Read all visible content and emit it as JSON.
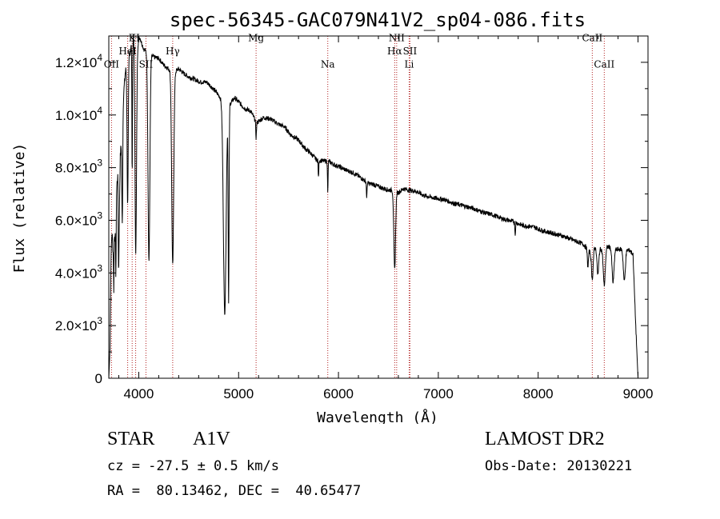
{
  "chart_data": {
    "type": "line",
    "title": "spec-56345-GAC079N41V2_sp04-086.fits",
    "xlabel": "Wavelength (Å)",
    "ylabel": "Flux (relative)",
    "xlim": [
      3700,
      9100
    ],
    "ylim": [
      0,
      13000
    ],
    "xticks": [
      4000,
      5000,
      6000,
      7000,
      8000,
      9000
    ],
    "xtick_labels": [
      "4000",
      "5000",
      "6000",
      "7000",
      "8000",
      "9000"
    ],
    "yticks": [
      0,
      2000,
      4000,
      6000,
      8000,
      10000,
      12000
    ],
    "ytick_labels": [
      {
        "mant": "0",
        "exp": ""
      },
      {
        "mant": "2.0×10",
        "exp": "3"
      },
      {
        "mant": "4.0×10",
        "exp": "3"
      },
      {
        "mant": "6.0×10",
        "exp": "3"
      },
      {
        "mant": "8.0×10",
        "exp": "3"
      },
      {
        "mant": "1.0×10",
        "exp": "4"
      },
      {
        "mant": "1.2×10",
        "exp": "4"
      }
    ],
    "grid": false,
    "continuum": [
      [
        3700,
        0
      ],
      [
        3712,
        1100
      ],
      [
        3722,
        4600
      ],
      [
        3732,
        5600
      ],
      [
        3742,
        4800
      ],
      [
        3752,
        6000
      ],
      [
        3762,
        5200
      ],
      [
        3775,
        7000
      ],
      [
        3790,
        7800
      ],
      [
        3805,
        6300
      ],
      [
        3815,
        8400
      ],
      [
        3830,
        9300
      ],
      [
        3845,
        10600
      ],
      [
        3865,
        11600
      ],
      [
        3885,
        12000
      ],
      [
        3900,
        12300
      ],
      [
        3925,
        12600
      ],
      [
        3950,
        12950
      ],
      [
        3980,
        12800
      ],
      [
        4010,
        12950
      ],
      [
        4050,
        12500
      ],
      [
        4100,
        12350
      ],
      [
        4150,
        12200
      ],
      [
        4200,
        12150
      ],
      [
        4250,
        11900
      ],
      [
        4300,
        11750
      ],
      [
        4360,
        11650
      ],
      [
        4400,
        11750
      ],
      [
        4460,
        11550
      ],
      [
        4500,
        11450
      ],
      [
        4560,
        11350
      ],
      [
        4620,
        11250
      ],
      [
        4680,
        11250
      ],
      [
        4720,
        11100
      ],
      [
        4780,
        10850
      ],
      [
        4840,
        10550
      ],
      [
        4900,
        10350
      ],
      [
        4960,
        10650
      ],
      [
        5000,
        10500
      ],
      [
        5060,
        10250
      ],
      [
        5120,
        10150
      ],
      [
        5180,
        9700
      ],
      [
        5250,
        9900
      ],
      [
        5320,
        9850
      ],
      [
        5400,
        9650
      ],
      [
        5460,
        9550
      ],
      [
        5520,
        9250
      ],
      [
        5600,
        9050
      ],
      [
        5660,
        8750
      ],
      [
        5720,
        8550
      ],
      [
        5780,
        8300
      ],
      [
        5850,
        8250
      ],
      [
        5900,
        8250
      ],
      [
        5960,
        8100
      ],
      [
        6000,
        8050
      ],
      [
        6080,
        7900
      ],
      [
        6150,
        7800
      ],
      [
        6230,
        7600
      ],
      [
        6300,
        7400
      ],
      [
        6360,
        7350
      ],
      [
        6420,
        7250
      ],
      [
        6500,
        7150
      ],
      [
        6540,
        7150
      ],
      [
        6600,
        7050
      ],
      [
        6650,
        7200
      ],
      [
        6700,
        7150
      ],
      [
        6780,
        7100
      ],
      [
        6850,
        6950
      ],
      [
        6950,
        6850
      ],
      [
        7050,
        6800
      ],
      [
        7150,
        6650
      ],
      [
        7250,
        6550
      ],
      [
        7350,
        6450
      ],
      [
        7450,
        6300
      ],
      [
        7550,
        6200
      ],
      [
        7650,
        6050
      ],
      [
        7750,
        5950
      ],
      [
        7850,
        5800
      ],
      [
        7950,
        5750
      ],
      [
        8050,
        5600
      ],
      [
        8150,
        5500
      ],
      [
        8250,
        5400
      ],
      [
        8350,
        5250
      ],
      [
        8450,
        5100
      ],
      [
        8520,
        4800
      ],
      [
        8560,
        4950
      ],
      [
        8640,
        4900
      ],
      [
        8700,
        5000
      ],
      [
        8780,
        4900
      ],
      [
        8860,
        4900
      ],
      [
        8920,
        4850
      ],
      [
        8950,
        4700
      ],
      [
        8975,
        2200
      ],
      [
        9000,
        0
      ]
    ],
    "absorption_lines": [
      {
        "center": 3750,
        "depth": 2400,
        "width": 4
      },
      {
        "center": 3771,
        "depth": 2600,
        "width": 4
      },
      {
        "center": 3798,
        "depth": 2900,
        "width": 5
      },
      {
        "center": 3835,
        "depth": 3900,
        "width": 6
      },
      {
        "center": 3889,
        "depth": 5500,
        "width": 8
      },
      {
        "center": 3934,
        "depth": 5000,
        "width": 4
      },
      {
        "center": 3970,
        "depth": 8000,
        "width": 11
      },
      {
        "center": 4102,
        "depth": 7900,
        "width": 13
      },
      {
        "center": 4340,
        "depth": 7400,
        "width": 14
      },
      {
        "center": 4861,
        "depth": 8000,
        "width": 19
      },
      {
        "center": 4900,
        "depth": 7400,
        "width": 6
      },
      {
        "center": 5175,
        "depth": 600,
        "width": 5
      },
      {
        "center": 5800,
        "depth": 700,
        "width": 4
      },
      {
        "center": 5893,
        "depth": 1250,
        "width": 4
      },
      {
        "center": 6283,
        "depth": 650,
        "width": 4
      },
      {
        "center": 6563,
        "depth": 3000,
        "width": 12
      },
      {
        "center": 7770,
        "depth": 500,
        "width": 4
      },
      {
        "center": 8498,
        "depth": 650,
        "width": 8
      },
      {
        "center": 8542,
        "depth": 1100,
        "width": 12
      },
      {
        "center": 8598,
        "depth": 1000,
        "width": 12
      },
      {
        "center": 8662,
        "depth": 1400,
        "width": 14
      },
      {
        "center": 8750,
        "depth": 1300,
        "width": 14
      },
      {
        "center": 8863,
        "depth": 1200,
        "width": 14
      }
    ],
    "line_markers": [
      {
        "label": "OII",
        "wavelength": 3727,
        "label_y": 11800
      },
      {
        "label": "K",
        "wavelength": 3934,
        "label_y": 12800
      },
      {
        "label": "HeI",
        "wavelength": 3889,
        "label_y": 12300
      },
      {
        "label": "H",
        "wavelength": 3969,
        "label_y": 12800
      },
      {
        "label": "SII",
        "wavelength": 4072,
        "label_y": 11800
      },
      {
        "label": "Hγ",
        "wavelength": 4340,
        "label_y": 12300
      },
      {
        "label": "Mg",
        "wavelength": 5175,
        "label_y": 12800
      },
      {
        "label": "Na",
        "wavelength": 5893,
        "label_y": 11800
      },
      {
        "label": "NII",
        "wavelength": 6583,
        "label_y": 12800
      },
      {
        "label": "Hα",
        "wavelength": 6563,
        "label_y": 12300
      },
      {
        "label": "SII",
        "wavelength": 6716,
        "label_y": 12300
      },
      {
        "label": "Li",
        "wavelength": 6708,
        "label_y": 11800
      },
      {
        "label": "CaII",
        "wavelength": 8542,
        "label_y": 12800
      },
      {
        "label": "CaII",
        "wavelength": 8662,
        "label_y": 11800
      }
    ]
  },
  "info": {
    "object_type": "STAR",
    "subclass": "A1V",
    "survey": "LAMOST DR2",
    "velocity": "cz = -27.5 ± 0.5 km/s",
    "obs_date": "Obs-Date: 20130221",
    "coords": "RA =  80.13462, DEC =  40.65477"
  },
  "colors": {
    "spectrum": "#000000",
    "marker_line": "#b22222",
    "axis": "#000000"
  }
}
